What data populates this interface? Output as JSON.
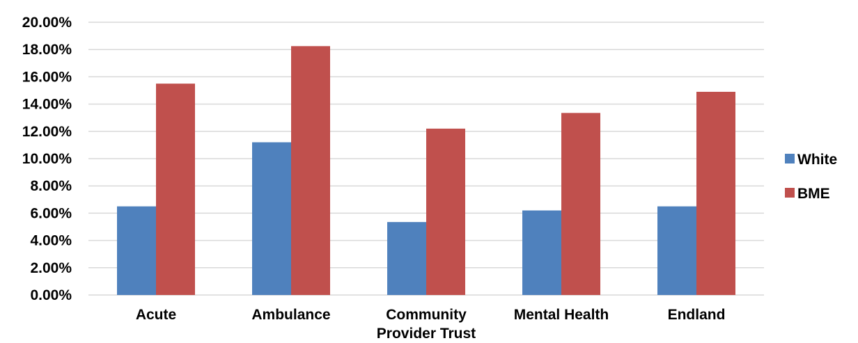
{
  "chart_data": {
    "type": "bar",
    "categories": [
      [
        "Acute"
      ],
      [
        "Ambulance"
      ],
      [
        "Community",
        "Provider Trust"
      ],
      [
        "Mental Health"
      ],
      [
        "Endland"
      ]
    ],
    "series": [
      {
        "name": "White",
        "color": "#4f81bd",
        "values": [
          6.5,
          11.2,
          5.35,
          6.2,
          6.5
        ]
      },
      {
        "name": "BME",
        "color": "#c0504d",
        "values": [
          15.5,
          18.25,
          12.2,
          13.35,
          14.9
        ]
      }
    ],
    "ylim": [
      0,
      20
    ],
    "yticks": [
      "0.00%",
      "2.00%",
      "4.00%",
      "6.00%",
      "8.00%",
      "10.00%",
      "12.00%",
      "14.00%",
      "16.00%",
      "18.00%",
      "20.00%"
    ],
    "ytick_values": [
      0,
      2,
      4,
      6,
      8,
      10,
      12,
      14,
      16,
      18,
      20
    ],
    "grid": true,
    "legend_position": "right"
  }
}
